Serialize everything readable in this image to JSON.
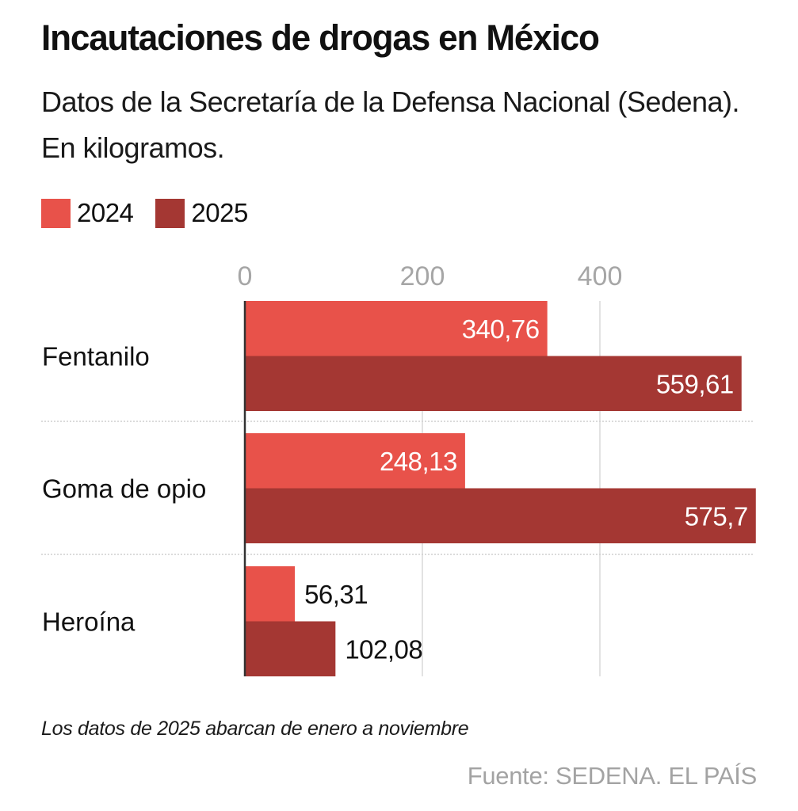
{
  "title": "Incautaciones de drogas en México",
  "subtitle": "Datos de la Secretaría de la Defensa Nacional (Sedena). En kilogramos.",
  "legend": [
    {
      "label": "2024",
      "color": "#e8524a"
    },
    {
      "label": "2025",
      "color": "#a43733"
    }
  ],
  "footnote": "Los datos de 2025 abarcan de enero a noviembre",
  "source": "Fuente: SEDENA. EL PAÍS",
  "chart_data": {
    "type": "bar",
    "orientation": "horizontal",
    "title": "Incautaciones de drogas en México",
    "xlabel": "",
    "ylabel": "",
    "categories": [
      "Fentanilo",
      "Goma de opio",
      "Heroína"
    ],
    "series": [
      {
        "name": "2024",
        "color": "#e8524a",
        "values": [
          340.76,
          248.13,
          56.31
        ],
        "labels": [
          "340,76",
          "248,13",
          "56,31"
        ]
      },
      {
        "name": "2025",
        "color": "#a43733",
        "values": [
          559.61,
          575.7,
          102.08
        ],
        "labels": [
          "559,61",
          "575,7",
          "102,08"
        ]
      }
    ],
    "xticks": [
      0,
      200,
      400
    ],
    "xtick_labels": [
      "0",
      "200",
      "400"
    ],
    "xlim": [
      0,
      575.7
    ],
    "grid": true,
    "legend_position": "top-left",
    "units": "kilogramos"
  }
}
